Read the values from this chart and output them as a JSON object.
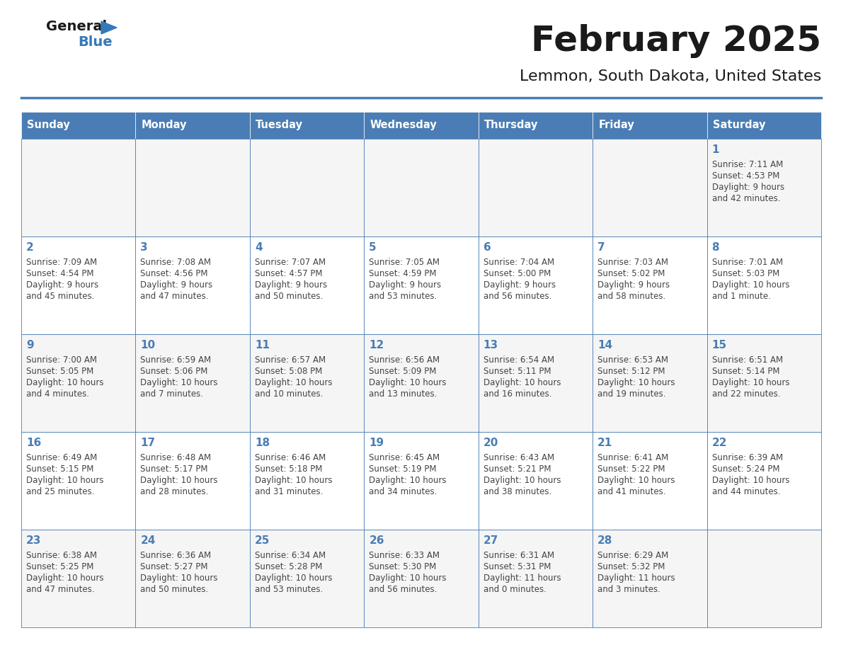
{
  "title": "February 2025",
  "subtitle": "Lemmon, South Dakota, United States",
  "header_bg": "#4a7db5",
  "header_text": "#FFFFFF",
  "days_of_week": [
    "Sunday",
    "Monday",
    "Tuesday",
    "Wednesday",
    "Thursday",
    "Friday",
    "Saturday"
  ],
  "cell_bg_light": "#f5f5f5",
  "cell_bg_white": "#FFFFFF",
  "cell_border": "#4a7db5",
  "day_number_color": "#4a7db5",
  "info_text_color": "#444444",
  "bg_color": "#FFFFFF",
  "logo_general_color": "#1a1a1a",
  "logo_blue_color": "#3579b8",
  "logo_triangle_color": "#3579b8",
  "calendar_data": [
    [
      null,
      null,
      null,
      null,
      null,
      null,
      {
        "day": "1",
        "sunrise": "7:11 AM",
        "sunset": "4:53 PM",
        "daylight_line1": "Daylight: 9 hours",
        "daylight_line2": "and 42 minutes."
      }
    ],
    [
      {
        "day": "2",
        "sunrise": "7:09 AM",
        "sunset": "4:54 PM",
        "daylight_line1": "Daylight: 9 hours",
        "daylight_line2": "and 45 minutes."
      },
      {
        "day": "3",
        "sunrise": "7:08 AM",
        "sunset": "4:56 PM",
        "daylight_line1": "Daylight: 9 hours",
        "daylight_line2": "and 47 minutes."
      },
      {
        "day": "4",
        "sunrise": "7:07 AM",
        "sunset": "4:57 PM",
        "daylight_line1": "Daylight: 9 hours",
        "daylight_line2": "and 50 minutes."
      },
      {
        "day": "5",
        "sunrise": "7:05 AM",
        "sunset": "4:59 PM",
        "daylight_line1": "Daylight: 9 hours",
        "daylight_line2": "and 53 minutes."
      },
      {
        "day": "6",
        "sunrise": "7:04 AM",
        "sunset": "5:00 PM",
        "daylight_line1": "Daylight: 9 hours",
        "daylight_line2": "and 56 minutes."
      },
      {
        "day": "7",
        "sunrise": "7:03 AM",
        "sunset": "5:02 PM",
        "daylight_line1": "Daylight: 9 hours",
        "daylight_line2": "and 58 minutes."
      },
      {
        "day": "8",
        "sunrise": "7:01 AM",
        "sunset": "5:03 PM",
        "daylight_line1": "Daylight: 10 hours",
        "daylight_line2": "and 1 minute."
      }
    ],
    [
      {
        "day": "9",
        "sunrise": "7:00 AM",
        "sunset": "5:05 PM",
        "daylight_line1": "Daylight: 10 hours",
        "daylight_line2": "and 4 minutes."
      },
      {
        "day": "10",
        "sunrise": "6:59 AM",
        "sunset": "5:06 PM",
        "daylight_line1": "Daylight: 10 hours",
        "daylight_line2": "and 7 minutes."
      },
      {
        "day": "11",
        "sunrise": "6:57 AM",
        "sunset": "5:08 PM",
        "daylight_line1": "Daylight: 10 hours",
        "daylight_line2": "and 10 minutes."
      },
      {
        "day": "12",
        "sunrise": "6:56 AM",
        "sunset": "5:09 PM",
        "daylight_line1": "Daylight: 10 hours",
        "daylight_line2": "and 13 minutes."
      },
      {
        "day": "13",
        "sunrise": "6:54 AM",
        "sunset": "5:11 PM",
        "daylight_line1": "Daylight: 10 hours",
        "daylight_line2": "and 16 minutes."
      },
      {
        "day": "14",
        "sunrise": "6:53 AM",
        "sunset": "5:12 PM",
        "daylight_line1": "Daylight: 10 hours",
        "daylight_line2": "and 19 minutes."
      },
      {
        "day": "15",
        "sunrise": "6:51 AM",
        "sunset": "5:14 PM",
        "daylight_line1": "Daylight: 10 hours",
        "daylight_line2": "and 22 minutes."
      }
    ],
    [
      {
        "day": "16",
        "sunrise": "6:49 AM",
        "sunset": "5:15 PM",
        "daylight_line1": "Daylight: 10 hours",
        "daylight_line2": "and 25 minutes."
      },
      {
        "day": "17",
        "sunrise": "6:48 AM",
        "sunset": "5:17 PM",
        "daylight_line1": "Daylight: 10 hours",
        "daylight_line2": "and 28 minutes."
      },
      {
        "day": "18",
        "sunrise": "6:46 AM",
        "sunset": "5:18 PM",
        "daylight_line1": "Daylight: 10 hours",
        "daylight_line2": "and 31 minutes."
      },
      {
        "day": "19",
        "sunrise": "6:45 AM",
        "sunset": "5:19 PM",
        "daylight_line1": "Daylight: 10 hours",
        "daylight_line2": "and 34 minutes."
      },
      {
        "day": "20",
        "sunrise": "6:43 AM",
        "sunset": "5:21 PM",
        "daylight_line1": "Daylight: 10 hours",
        "daylight_line2": "and 38 minutes."
      },
      {
        "day": "21",
        "sunrise": "6:41 AM",
        "sunset": "5:22 PM",
        "daylight_line1": "Daylight: 10 hours",
        "daylight_line2": "and 41 minutes."
      },
      {
        "day": "22",
        "sunrise": "6:39 AM",
        "sunset": "5:24 PM",
        "daylight_line1": "Daylight: 10 hours",
        "daylight_line2": "and 44 minutes."
      }
    ],
    [
      {
        "day": "23",
        "sunrise": "6:38 AM",
        "sunset": "5:25 PM",
        "daylight_line1": "Daylight: 10 hours",
        "daylight_line2": "and 47 minutes."
      },
      {
        "day": "24",
        "sunrise": "6:36 AM",
        "sunset": "5:27 PM",
        "daylight_line1": "Daylight: 10 hours",
        "daylight_line2": "and 50 minutes."
      },
      {
        "day": "25",
        "sunrise": "6:34 AM",
        "sunset": "5:28 PM",
        "daylight_line1": "Daylight: 10 hours",
        "daylight_line2": "and 53 minutes."
      },
      {
        "day": "26",
        "sunrise": "6:33 AM",
        "sunset": "5:30 PM",
        "daylight_line1": "Daylight: 10 hours",
        "daylight_line2": "and 56 minutes."
      },
      {
        "day": "27",
        "sunrise": "6:31 AM",
        "sunset": "5:31 PM",
        "daylight_line1": "Daylight: 11 hours",
        "daylight_line2": "and 0 minutes."
      },
      {
        "day": "28",
        "sunrise": "6:29 AM",
        "sunset": "5:32 PM",
        "daylight_line1": "Daylight: 11 hours",
        "daylight_line2": "and 3 minutes."
      },
      null
    ]
  ]
}
